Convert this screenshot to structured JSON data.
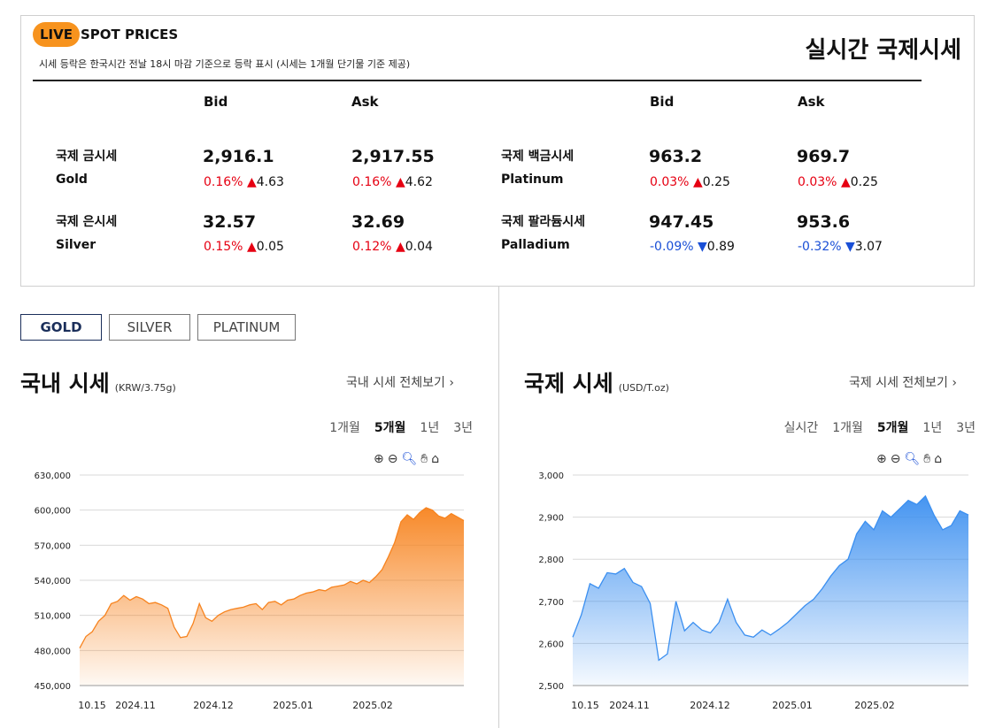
{
  "header": {
    "live": "LIVE",
    "spot": "SPOT PRICES",
    "note": "시세 등락은 한국시간 전날 18시 마감 기준으로 등락 표시 (시세는 1개월 단기물 기준 제공)",
    "title": "실시간 국제시세",
    "bid": "Bid",
    "ask": "Ask"
  },
  "metals": {
    "gold": {
      "ko": "국제 금시세",
      "en": "Gold",
      "bid": "2,916.1",
      "bid_pct": "0.16%",
      "bid_chg": "4.63",
      "ask": "2,917.55",
      "ask_pct": "0.16%",
      "ask_chg": "4.62"
    },
    "silver": {
      "ko": "국제 은시세",
      "en": "Silver",
      "bid": "32.57",
      "bid_pct": "0.15%",
      "bid_chg": "0.05",
      "ask": "32.69",
      "ask_pct": "0.12%",
      "ask_chg": "0.04"
    },
    "platinum": {
      "ko": "국제 백금시세",
      "en": "Platinum",
      "bid": "963.2",
      "bid_pct": "0.03%",
      "bid_chg": "0.25",
      "ask": "969.7",
      "ask_pct": "0.03%",
      "ask_chg": "0.25"
    },
    "palladium": {
      "ko": "국제 팔라듐시세",
      "en": "Palladium",
      "bid": "947.45",
      "bid_pct": "-0.09%",
      "bid_chg": "0.89",
      "ask": "953.6",
      "ask_pct": "-0.32%",
      "ask_chg": "3.07"
    },
    "up_arrow": "▲",
    "down_arrow": "▼"
  },
  "tabs": [
    "GOLD",
    "SILVER",
    "PLATINUM"
  ],
  "domestic": {
    "title": "국내 시세",
    "unit": "(KRW/3.75g)",
    "more": "국내 시세 전체보기",
    "periods": [
      "1개월",
      "5개월",
      "1년",
      "3년"
    ],
    "selected": "5개월"
  },
  "international": {
    "title": "국제 시세",
    "unit": "(USD/T.oz)",
    "more": "국제 시세 전체보기",
    "periods": [
      "실시간",
      "1개월",
      "5개월",
      "1년",
      "3년"
    ],
    "selected": "5개월"
  },
  "tools": [
    "zoom-in-icon",
    "zoom-out-icon",
    "magnifier-icon",
    "hand-icon",
    "home-icon"
  ],
  "colors": {
    "live": "#f7931e",
    "up": "#e60012",
    "down": "#1a4fd6",
    "domestic": "#f7831e",
    "international": "#3b8ff0"
  },
  "chart_data": [
    {
      "type": "area",
      "ylim": [
        450000,
        630000
      ],
      "yticks": [
        "630,000",
        "600,000",
        "570,000",
        "540,000",
        "510,000",
        "480,000",
        "450,000"
      ],
      "xticks": [
        "10.15",
        "2024.11",
        "2024.12",
        "2025.01",
        "2025.02"
      ],
      "y": [
        482000,
        492000,
        496000,
        505000,
        510000,
        520000,
        522000,
        527000,
        523000,
        526000,
        524000,
        520000,
        521000,
        519000,
        516000,
        500000,
        491000,
        492000,
        503000,
        520000,
        508000,
        505000,
        510000,
        513000,
        515000,
        516000,
        517000,
        519000,
        520000,
        515000,
        521000,
        522000,
        519000,
        523000,
        524000,
        527000,
        529000,
        530000,
        532000,
        531000,
        534000,
        535000,
        536000,
        539000,
        537000,
        540000,
        538000,
        543000,
        549000,
        560000,
        572000,
        590000,
        596000,
        592000,
        598000,
        602000,
        600000,
        595000,
        593000,
        597000,
        594000,
        591000
      ]
    },
    {
      "type": "area",
      "ylim": [
        2500,
        3000
      ],
      "yticks": [
        "3,000",
        "2,900",
        "2,800",
        "2,700",
        "2,600",
        "2,500"
      ],
      "xticks": [
        "10.15",
        "2024.11",
        "2024.12",
        "2025.01",
        "2025.02"
      ],
      "y": [
        2615,
        2668,
        2742,
        2731,
        2768,
        2765,
        2778,
        2745,
        2735,
        2695,
        2560,
        2575,
        2700,
        2630,
        2650,
        2632,
        2625,
        2650,
        2705,
        2650,
        2620,
        2615,
        2632,
        2620,
        2634,
        2650,
        2670,
        2690,
        2705,
        2730,
        2760,
        2785,
        2800,
        2860,
        2890,
        2870,
        2915,
        2900,
        2920,
        2940,
        2930,
        2950,
        2905,
        2870,
        2880,
        2915,
        2905
      ]
    }
  ]
}
